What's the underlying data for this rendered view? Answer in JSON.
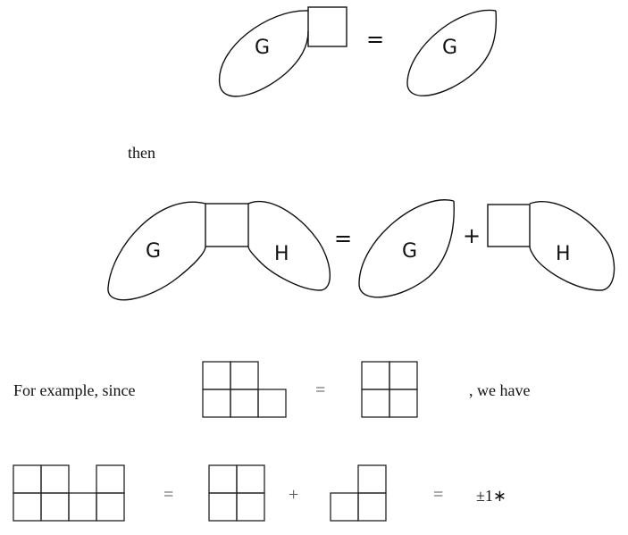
{
  "diagram1": {
    "left_label": "G",
    "right_label": "G",
    "equals": "="
  },
  "then_text": "then",
  "diagram2": {
    "left_g": "G",
    "left_h": "H",
    "equals": "=",
    "right_g": "G",
    "plus": "+",
    "right_h": "H"
  },
  "example": {
    "intro": "For example, since",
    "equals": "=",
    "conclusion": ", we have"
  },
  "final_line": {
    "equals1": "=",
    "plus": "+",
    "equals2": "=",
    "result": "±1∗"
  }
}
